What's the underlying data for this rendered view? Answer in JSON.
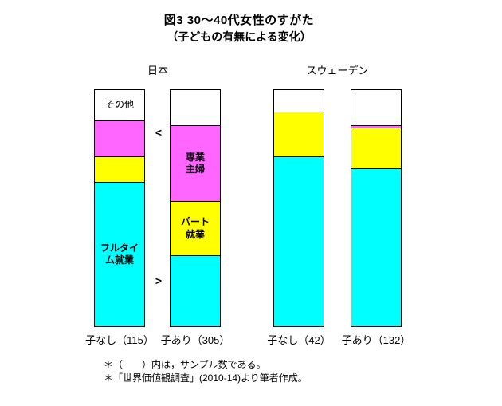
{
  "title": {
    "line1": "図3  30～40代女性のすがた",
    "line2": "（子どもの有無による変化）"
  },
  "groups": [
    {
      "id": "japan",
      "label": "日本"
    },
    {
      "id": "sweden",
      "label": "スウェーデン"
    }
  ],
  "comparison": {
    "top": "<",
    "bottom": ">"
  },
  "footnotes": [
    "＊（　　）内は，サンプル数である。",
    "＊「世界価値観調査」(2010-14)より筆者作成。"
  ],
  "chart_data": {
    "type": "bar",
    "subtype": "100%-stacked-column",
    "stack_order": "bottom-to-top",
    "ylim": [
      0,
      100
    ],
    "categories": [
      "子なし（115）",
      "子あり（305）",
      "子なし（42）",
      "子あり（132）"
    ],
    "series": [
      {
        "id": "fulltime",
        "name": "フルタイム就業",
        "color": "#00FFFF",
        "values": [
          61,
          30,
          72,
          67
        ]
      },
      {
        "id": "part",
        "name": "パート就業",
        "color": "#FFFF00",
        "values": [
          11,
          23,
          19,
          17
        ]
      },
      {
        "id": "housewife",
        "name": "専業主婦",
        "color": "#FF66FF",
        "values": [
          15,
          32,
          0,
          1
        ]
      },
      {
        "id": "other",
        "name": "その他",
        "color": "#FFFFFF",
        "values": [
          13,
          15,
          9,
          15
        ]
      }
    ],
    "segment_labels": [
      {
        "bar": 0,
        "series_index": 3,
        "text": "その他",
        "bold": false
      },
      {
        "bar": 0,
        "series_index": 0,
        "text": "フルタイ\nム就業",
        "bold": true
      },
      {
        "bar": 1,
        "series_index": 2,
        "text": "専業\n主婦",
        "bold": true
      },
      {
        "bar": 1,
        "series_index": 1,
        "text": "パート\n就業",
        "bold": true
      }
    ],
    "annotations": [
      {
        "text": "<",
        "between": [
          "子なし（115）",
          "子あり（305）"
        ],
        "position": "upper"
      },
      {
        "text": ">",
        "between": [
          "子なし（115）",
          "子あり（305）"
        ],
        "position": "lower"
      }
    ]
  }
}
